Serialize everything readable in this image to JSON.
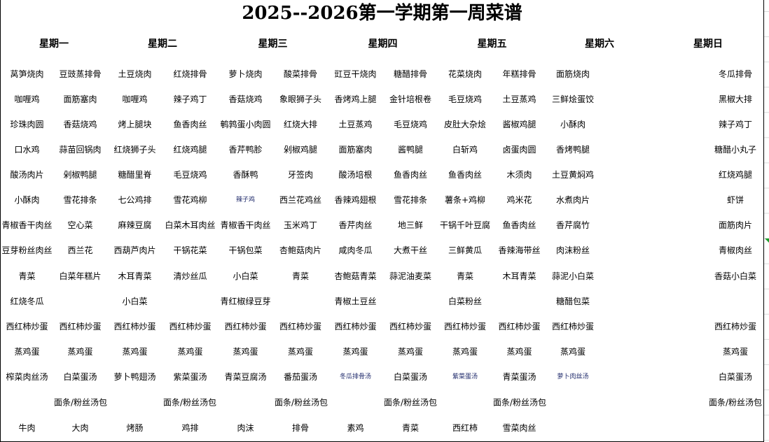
{
  "title": "2025--2026第一学期第一周菜谱",
  "days": [
    "星期一",
    "星期二",
    "星期三",
    "星期四",
    "星期五",
    "星期六",
    "星期日"
  ],
  "rows": [
    [
      "莴笋烧肉",
      "豆豉蒸排骨",
      "土豆烧肉",
      "红烧排骨",
      "萝卜烧肉",
      "酸菜排骨",
      "豇豆干烧肉",
      "糖醋排骨",
      "花菜烧肉",
      "年糕排骨",
      "面筋烧肉",
      "",
      "",
      "冬瓜排骨"
    ],
    [
      "咖喱鸡",
      "面筋塞肉",
      "咖喱鸡",
      "辣子鸡丁",
      "香菇烧鸡",
      "象眼狮子头",
      "香烤鸡上腿",
      "金针培根卷",
      "毛豆烧鸡",
      "土豆蒸鸡",
      "三鲜烩蛋饺",
      "",
      "",
      "黑椒大排"
    ],
    [
      "珍珠肉圆",
      "香菇烧鸡",
      "烤上腿块",
      "鱼香肉丝",
      "鹌鹑蛋小肉圆",
      "红烧大排",
      "土豆蒸鸡",
      "毛豆烧鸡",
      "皮肚大杂烩",
      "酱椒鸡腿",
      "小酥肉",
      "",
      "",
      "辣子鸡丁"
    ],
    [
      "口水鸡",
      "蒜苗回锅肉",
      "红烧狮子头",
      "红烧鸡腿",
      "香芹鸭胗",
      "剁椒鸡腿",
      "面筋塞肉",
      "酱鸭腿",
      "白斩鸡",
      "卤蛋肉圆",
      "香烤鸭腿",
      "",
      "",
      "糖醋小丸子"
    ],
    [
      "酸汤肉片",
      "剁椒鸭腿",
      "糖醋里脊",
      "毛豆烧鸡",
      "香酥鸭",
      "牙签肉",
      "酸汤培根",
      "鱼香肉丝",
      "鱼香肉丝",
      "木须肉",
      "土豆黄焖鸡",
      "",
      "",
      "红烧鸡腿"
    ],
    [
      "小酥肉",
      "雪花排条",
      "七公鸡排",
      "雪花鸡柳",
      "辣子鸡",
      "西兰花鸡丝",
      "香辣鸡翅根",
      "雪花排条",
      "薯条+鸡柳",
      "鸡米花",
      "水煮肉片",
      "",
      "",
      "虾饼"
    ],
    [
      "青椒香干肉丝",
      "空心菜",
      "麻辣豆腐",
      "白菜木耳肉丝",
      "青椒香干肉丝",
      "玉米鸡丁",
      "香芹肉丝",
      "地三鲜",
      "干锅千叶豆腐",
      "鱼香肉丝",
      "香芹腐竹",
      "",
      "",
      "面筋肉片"
    ],
    [
      "豆芽粉丝肉丝",
      "西兰花",
      "西葫芦肉片",
      "干锅花菜",
      "干锅包菜",
      "杏鲍菇肉片",
      "咸肉冬瓜",
      "大煮干丝",
      "三鲜黄瓜",
      "香辣海带丝",
      "肉沫粉丝",
      "",
      "",
      "青椒肉丝"
    ],
    [
      "青菜",
      "白菜年糕片",
      "木耳青菜",
      "清炒丝瓜",
      "小白菜",
      "青菜",
      "杏鲍菇青菜",
      "蒜泥油麦菜",
      "青菜",
      "木耳青菜",
      "蒜泥小白菜",
      "",
      "",
      "香菇小白菜"
    ],
    [
      "红烧冬瓜",
      "",
      "小白菜",
      "",
      "青红椒绿豆芽",
      "",
      "青椒土豆丝",
      "",
      "白菜粉丝",
      "",
      "糖醋包菜",
      "",
      "",
      ""
    ],
    [
      "西红柿炒蛋",
      "西红柿炒蛋",
      "西红柿炒蛋",
      "西红柿炒蛋",
      "西红柿炒蛋",
      "西红柿炒蛋",
      "西红柿炒蛋",
      "西红柿炒蛋",
      "西红柿炒蛋",
      "西红柿炒蛋",
      "西红柿炒蛋",
      "",
      "",
      "西红柿炒蛋"
    ],
    [
      "蒸鸡蛋",
      "蒸鸡蛋",
      "蒸鸡蛋",
      "蒸鸡蛋",
      "蒸鸡蛋",
      "蒸鸡蛋",
      "蒸鸡蛋",
      "蒸鸡蛋",
      "蒸鸡蛋",
      "蒸鸡蛋",
      "蒸鸡蛋",
      "",
      "",
      "蒸鸡蛋"
    ],
    [
      "榨菜肉丝汤",
      "白菜蛋汤",
      "萝卜鸭翅汤",
      "紫菜蛋汤",
      "青菜豆腐汤",
      "番茄蛋汤",
      "冬瓜排骨汤",
      "白菜蛋汤",
      "紫菜蛋汤",
      "青菜蛋汤",
      "萝卜肉丝汤",
      "",
      "",
      "白菜蛋汤"
    ]
  ],
  "noodle_row": [
    "面条/粉丝汤包",
    "面条/粉丝汤包",
    "面条/粉丝汤包",
    "面条/粉丝汤包",
    "面条/粉丝汤包",
    "面条/粉丝汤包"
  ],
  "last_row": [
    "牛肉",
    "大肉",
    "烤肠",
    "鸡排",
    "肉沫",
    "排骨",
    "素鸡",
    "青菜",
    "西红柿",
    "雪菜肉丝",
    "",
    "",
    "",
    ""
  ]
}
